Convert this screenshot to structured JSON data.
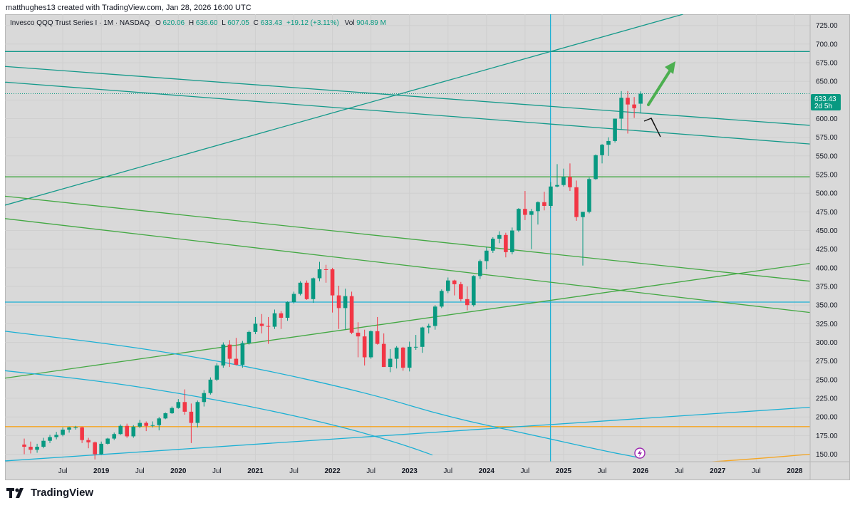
{
  "header": {
    "credit": "matthughes13 created with TradingView.com, Jan 28, 2026 16:00 UTC"
  },
  "legend": {
    "symbol": "Invesco QQQ Trust Series I · 1M · NASDAQ",
    "o_label": "O",
    "o_value": "620.06",
    "h_label": "H",
    "h_value": "636.60",
    "l_label": "L",
    "l_value": "607.05",
    "c_label": "C",
    "c_value": "633.43",
    "change": "+19.12 (+3.11%)",
    "vol_label": "Vol",
    "vol_value": "904.89 M"
  },
  "price_tag": {
    "value": "633.43",
    "countdown": "2d 5h"
  },
  "footer": {
    "brand": "TradingView"
  },
  "colors": {
    "background": "#d9d9d9",
    "up": "#089981",
    "down": "#f23645",
    "teal_line": "#14998a",
    "green_line": "#43a843",
    "cyan_line": "#1cb0d4",
    "orange_line": "#f5a623",
    "arrow_green": "#4caf50"
  },
  "chart_data": {
    "type": "candlestick",
    "title": "Invesco QQQ Trust Series I · 1M · NASDAQ",
    "ylim": [
      140,
      740
    ],
    "y_ticks": [
      150,
      175,
      200,
      225,
      250,
      275,
      300,
      325,
      350,
      375,
      400,
      425,
      450,
      475,
      500,
      525,
      550,
      575,
      600,
      625,
      650,
      675,
      700,
      725
    ],
    "x_ticks": [
      {
        "label": "Jul",
        "t": 2018.5,
        "year": false
      },
      {
        "label": "2019",
        "t": 2019.0,
        "year": true
      },
      {
        "label": "Jul",
        "t": 2019.5,
        "year": false
      },
      {
        "label": "2020",
        "t": 2020.0,
        "year": true
      },
      {
        "label": "Jul",
        "t": 2020.5,
        "year": false
      },
      {
        "label": "2021",
        "t": 2021.0,
        "year": true
      },
      {
        "label": "Jul",
        "t": 2021.5,
        "year": false
      },
      {
        "label": "2022",
        "t": 2022.0,
        "year": true
      },
      {
        "label": "Jul",
        "t": 2022.5,
        "year": false
      },
      {
        "label": "2023",
        "t": 2023.0,
        "year": true
      },
      {
        "label": "Jul",
        "t": 2023.5,
        "year": false
      },
      {
        "label": "2024",
        "t": 2024.0,
        "year": true
      },
      {
        "label": "Jul",
        "t": 2024.5,
        "year": false
      },
      {
        "label": "2025",
        "t": 2025.0,
        "year": true
      },
      {
        "label": "Jul",
        "t": 2025.5,
        "year": false
      },
      {
        "label": "2026",
        "t": 2026.0,
        "year": true
      },
      {
        "label": "Jul",
        "t": 2026.5,
        "year": false
      },
      {
        "label": "2027",
        "t": 2027.0,
        "year": true
      },
      {
        "label": "Jul",
        "t": 2027.5,
        "year": false
      },
      {
        "label": "2028",
        "t": 2028.0,
        "year": true
      }
    ],
    "candles": [
      {
        "t": 2018.0,
        "o": 163,
        "h": 171,
        "l": 150,
        "c": 160
      },
      {
        "t": 2018.083,
        "o": 160,
        "h": 167,
        "l": 151,
        "c": 156
      },
      {
        "t": 2018.167,
        "o": 156,
        "h": 164,
        "l": 152,
        "c": 160
      },
      {
        "t": 2018.25,
        "o": 160,
        "h": 172,
        "l": 158,
        "c": 168
      },
      {
        "t": 2018.333,
        "o": 168,
        "h": 176,
        "l": 165,
        "c": 173
      },
      {
        "t": 2018.417,
        "o": 173,
        "h": 180,
        "l": 170,
        "c": 176
      },
      {
        "t": 2018.5,
        "o": 176,
        "h": 186,
        "l": 174,
        "c": 183
      },
      {
        "t": 2018.583,
        "o": 183,
        "h": 187,
        "l": 179,
        "c": 186
      },
      {
        "t": 2018.667,
        "o": 186,
        "h": 188,
        "l": 183,
        "c": 186
      },
      {
        "t": 2018.75,
        "o": 186,
        "h": 187,
        "l": 165,
        "c": 169
      },
      {
        "t": 2018.833,
        "o": 169,
        "h": 172,
        "l": 158,
        "c": 166
      },
      {
        "t": 2018.917,
        "o": 166,
        "h": 167,
        "l": 143,
        "c": 150
      },
      {
        "t": 2019.0,
        "o": 150,
        "h": 167,
        "l": 149,
        "c": 164
      },
      {
        "t": 2019.083,
        "o": 164,
        "h": 172,
        "l": 163,
        "c": 171
      },
      {
        "t": 2019.167,
        "o": 171,
        "h": 179,
        "l": 169,
        "c": 177
      },
      {
        "t": 2019.25,
        "o": 177,
        "h": 190,
        "l": 176,
        "c": 188
      },
      {
        "t": 2019.333,
        "o": 188,
        "h": 191,
        "l": 172,
        "c": 174
      },
      {
        "t": 2019.417,
        "o": 174,
        "h": 189,
        "l": 172,
        "c": 187
      },
      {
        "t": 2019.5,
        "o": 187,
        "h": 196,
        "l": 185,
        "c": 192
      },
      {
        "t": 2019.583,
        "o": 192,
        "h": 194,
        "l": 181,
        "c": 188
      },
      {
        "t": 2019.667,
        "o": 188,
        "h": 194,
        "l": 186,
        "c": 189
      },
      {
        "t": 2019.75,
        "o": 189,
        "h": 200,
        "l": 182,
        "c": 198
      },
      {
        "t": 2019.833,
        "o": 198,
        "h": 206,
        "l": 197,
        "c": 205
      },
      {
        "t": 2019.917,
        "o": 205,
        "h": 214,
        "l": 204,
        "c": 212
      },
      {
        "t": 2020.0,
        "o": 212,
        "h": 224,
        "l": 211,
        "c": 220
      },
      {
        "t": 2020.083,
        "o": 220,
        "h": 237,
        "l": 203,
        "c": 207
      },
      {
        "t": 2020.167,
        "o": 207,
        "h": 218,
        "l": 165,
        "c": 192
      },
      {
        "t": 2020.25,
        "o": 192,
        "h": 222,
        "l": 186,
        "c": 220
      },
      {
        "t": 2020.333,
        "o": 220,
        "h": 236,
        "l": 214,
        "c": 232
      },
      {
        "t": 2020.417,
        "o": 232,
        "h": 253,
        "l": 230,
        "c": 250
      },
      {
        "t": 2020.5,
        "o": 250,
        "h": 272,
        "l": 248,
        "c": 269
      },
      {
        "t": 2020.583,
        "o": 269,
        "h": 300,
        "l": 266,
        "c": 297
      },
      {
        "t": 2020.667,
        "o": 297,
        "h": 303,
        "l": 267,
        "c": 278
      },
      {
        "t": 2020.75,
        "o": 278,
        "h": 306,
        "l": 269,
        "c": 270
      },
      {
        "t": 2020.833,
        "o": 270,
        "h": 302,
        "l": 266,
        "c": 299
      },
      {
        "t": 2020.917,
        "o": 299,
        "h": 316,
        "l": 297,
        "c": 314
      },
      {
        "t": 2021.0,
        "o": 314,
        "h": 334,
        "l": 311,
        "c": 325
      },
      {
        "t": 2021.083,
        "o": 325,
        "h": 338,
        "l": 312,
        "c": 322
      },
      {
        "t": 2021.167,
        "o": 322,
        "h": 334,
        "l": 298,
        "c": 321
      },
      {
        "t": 2021.25,
        "o": 321,
        "h": 344,
        "l": 318,
        "c": 339
      },
      {
        "t": 2021.333,
        "o": 339,
        "h": 342,
        "l": 318,
        "c": 333
      },
      {
        "t": 2021.417,
        "o": 333,
        "h": 355,
        "l": 329,
        "c": 354
      },
      {
        "t": 2021.5,
        "o": 354,
        "h": 368,
        "l": 352,
        "c": 365
      },
      {
        "t": 2021.583,
        "o": 365,
        "h": 382,
        "l": 363,
        "c": 380
      },
      {
        "t": 2021.667,
        "o": 380,
        "h": 383,
        "l": 357,
        "c": 358
      },
      {
        "t": 2021.75,
        "o": 358,
        "h": 387,
        "l": 353,
        "c": 386
      },
      {
        "t": 2021.833,
        "o": 386,
        "h": 408,
        "l": 382,
        "c": 398
      },
      {
        "t": 2021.917,
        "o": 398,
        "h": 404,
        "l": 380,
        "c": 397
      },
      {
        "t": 2022.0,
        "o": 398,
        "h": 400,
        "l": 340,
        "c": 363
      },
      {
        "t": 2022.083,
        "o": 363,
        "h": 376,
        "l": 318,
        "c": 346
      },
      {
        "t": 2022.167,
        "o": 346,
        "h": 372,
        "l": 317,
        "c": 362
      },
      {
        "t": 2022.25,
        "o": 362,
        "h": 368,
        "l": 311,
        "c": 313
      },
      {
        "t": 2022.333,
        "o": 313,
        "h": 327,
        "l": 280,
        "c": 308
      },
      {
        "t": 2022.417,
        "o": 308,
        "h": 317,
        "l": 269,
        "c": 280
      },
      {
        "t": 2022.5,
        "o": 280,
        "h": 316,
        "l": 278,
        "c": 315
      },
      {
        "t": 2022.583,
        "o": 315,
        "h": 334,
        "l": 297,
        "c": 298
      },
      {
        "t": 2022.667,
        "o": 298,
        "h": 312,
        "l": 267,
        "c": 267
      },
      {
        "t": 2022.75,
        "o": 267,
        "h": 291,
        "l": 260,
        "c": 278
      },
      {
        "t": 2022.833,
        "o": 278,
        "h": 295,
        "l": 265,
        "c": 293
      },
      {
        "t": 2022.917,
        "o": 293,
        "h": 294,
        "l": 262,
        "c": 266
      },
      {
        "t": 2023.0,
        "o": 266,
        "h": 301,
        "l": 261,
        "c": 294
      },
      {
        "t": 2023.083,
        "o": 294,
        "h": 310,
        "l": 290,
        "c": 294
      },
      {
        "t": 2023.167,
        "o": 294,
        "h": 321,
        "l": 286,
        "c": 320
      },
      {
        "t": 2023.25,
        "o": 320,
        "h": 325,
        "l": 312,
        "c": 322
      },
      {
        "t": 2023.333,
        "o": 322,
        "h": 350,
        "l": 317,
        "c": 348
      },
      {
        "t": 2023.417,
        "o": 348,
        "h": 371,
        "l": 346,
        "c": 369
      },
      {
        "t": 2023.5,
        "o": 369,
        "h": 387,
        "l": 366,
        "c": 383
      },
      {
        "t": 2023.583,
        "o": 383,
        "h": 384,
        "l": 363,
        "c": 378
      },
      {
        "t": 2023.667,
        "o": 378,
        "h": 381,
        "l": 355,
        "c": 358
      },
      {
        "t": 2023.75,
        "o": 358,
        "h": 375,
        "l": 343,
        "c": 350
      },
      {
        "t": 2023.833,
        "o": 350,
        "h": 390,
        "l": 348,
        "c": 389
      },
      {
        "t": 2023.917,
        "o": 389,
        "h": 411,
        "l": 385,
        "c": 409
      },
      {
        "t": 2024.0,
        "o": 409,
        "h": 428,
        "l": 398,
        "c": 423
      },
      {
        "t": 2024.083,
        "o": 423,
        "h": 441,
        "l": 420,
        "c": 439
      },
      {
        "t": 2024.167,
        "o": 439,
        "h": 449,
        "l": 433,
        "c": 444
      },
      {
        "t": 2024.25,
        "o": 444,
        "h": 447,
        "l": 414,
        "c": 421
      },
      {
        "t": 2024.333,
        "o": 421,
        "h": 454,
        "l": 418,
        "c": 450
      },
      {
        "t": 2024.417,
        "o": 450,
        "h": 480,
        "l": 448,
        "c": 479
      },
      {
        "t": 2024.5,
        "o": 479,
        "h": 503,
        "l": 464,
        "c": 471
      },
      {
        "t": 2024.583,
        "o": 471,
        "h": 479,
        "l": 425,
        "c": 476
      },
      {
        "t": 2024.667,
        "o": 476,
        "h": 489,
        "l": 458,
        "c": 488
      },
      {
        "t": 2024.75,
        "o": 488,
        "h": 502,
        "l": 477,
        "c": 483
      },
      {
        "t": 2024.833,
        "o": 483,
        "h": 515,
        "l": 480,
        "c": 509
      },
      {
        "t": 2024.917,
        "o": 509,
        "h": 539,
        "l": 508,
        "c": 511
      },
      {
        "t": 2025.0,
        "o": 511,
        "h": 533,
        "l": 509,
        "c": 522
      },
      {
        "t": 2025.083,
        "o": 522,
        "h": 540,
        "l": 503,
        "c": 508
      },
      {
        "t": 2025.167,
        "o": 508,
        "h": 517,
        "l": 463,
        "c": 468
      },
      {
        "t": 2025.25,
        "o": 468,
        "h": 475,
        "l": 403,
        "c": 475
      },
      {
        "t": 2025.333,
        "o": 475,
        "h": 521,
        "l": 473,
        "c": 519
      },
      {
        "t": 2025.417,
        "o": 519,
        "h": 552,
        "l": 518,
        "c": 551
      },
      {
        "t": 2025.5,
        "o": 551,
        "h": 566,
        "l": 540,
        "c": 565
      },
      {
        "t": 2025.583,
        "o": 565,
        "h": 575,
        "l": 550,
        "c": 570
      },
      {
        "t": 2025.667,
        "o": 570,
        "h": 600,
        "l": 568,
        "c": 600
      },
      {
        "t": 2025.75,
        "o": 600,
        "h": 637,
        "l": 585,
        "c": 628
      },
      {
        "t": 2025.833,
        "o": 628,
        "h": 637,
        "l": 580,
        "c": 619
      },
      {
        "t": 2025.917,
        "o": 619,
        "h": 629,
        "l": 601,
        "c": 614
      },
      {
        "t": 2026.0,
        "o": 620.06,
        "h": 636.6,
        "l": 607.05,
        "c": 633.43
      }
    ],
    "trendlines": [
      {
        "color": "teal",
        "t1": 2017.75,
        "v1": 670,
        "t2": 2028.2,
        "v2": 591
      },
      {
        "color": "teal",
        "t1": 2017.75,
        "v1": 649,
        "t2": 2028.2,
        "v2": 566
      },
      {
        "color": "teal",
        "t1": 2017.75,
        "v1": 484,
        "t2": 2026.55,
        "v2": 740
      },
      {
        "color": "green",
        "t1": 2017.75,
        "v1": 496,
        "t2": 2028.2,
        "v2": 382
      },
      {
        "color": "green",
        "t1": 2017.75,
        "v1": 466,
        "t2": 2028.2,
        "v2": 340
      },
      {
        "color": "green",
        "t1": 2017.75,
        "v1": 252,
        "t2": 2028.2,
        "v2": 406
      },
      {
        "color": "cyan",
        "t1": 2017.75,
        "v1": 141,
        "t2": 2028.2,
        "v2": 213
      }
    ],
    "hlines": [
      {
        "color": "teal",
        "value": 690
      },
      {
        "color": "green",
        "value": 522
      },
      {
        "color": "cyan",
        "value": 354
      },
      {
        "color": "orange",
        "value": 187
      }
    ],
    "vlines": [
      {
        "color": "cyan",
        "t": 2024.83
      }
    ],
    "curves": [
      {
        "color": "cyan",
        "points": [
          [
            2017.75,
            315
          ],
          [
            2019.5,
            293
          ],
          [
            2021.0,
            266
          ],
          [
            2022.5,
            231
          ],
          [
            2023.5,
            200
          ],
          [
            2024.5,
            178
          ],
          [
            2025.5,
            155
          ],
          [
            2026.0,
            145
          ]
        ]
      },
      {
        "color": "cyan",
        "points": [
          [
            2017.75,
            262
          ],
          [
            2019.0,
            248
          ],
          [
            2020.0,
            232
          ],
          [
            2021.0,
            213
          ],
          [
            2022.0,
            190
          ],
          [
            2022.8,
            167
          ],
          [
            2023.3,
            149
          ]
        ]
      },
      {
        "color": "orange",
        "points": [
          [
            2026.8,
            139
          ],
          [
            2027.5,
            144
          ],
          [
            2028.2,
            150
          ]
        ]
      }
    ]
  }
}
